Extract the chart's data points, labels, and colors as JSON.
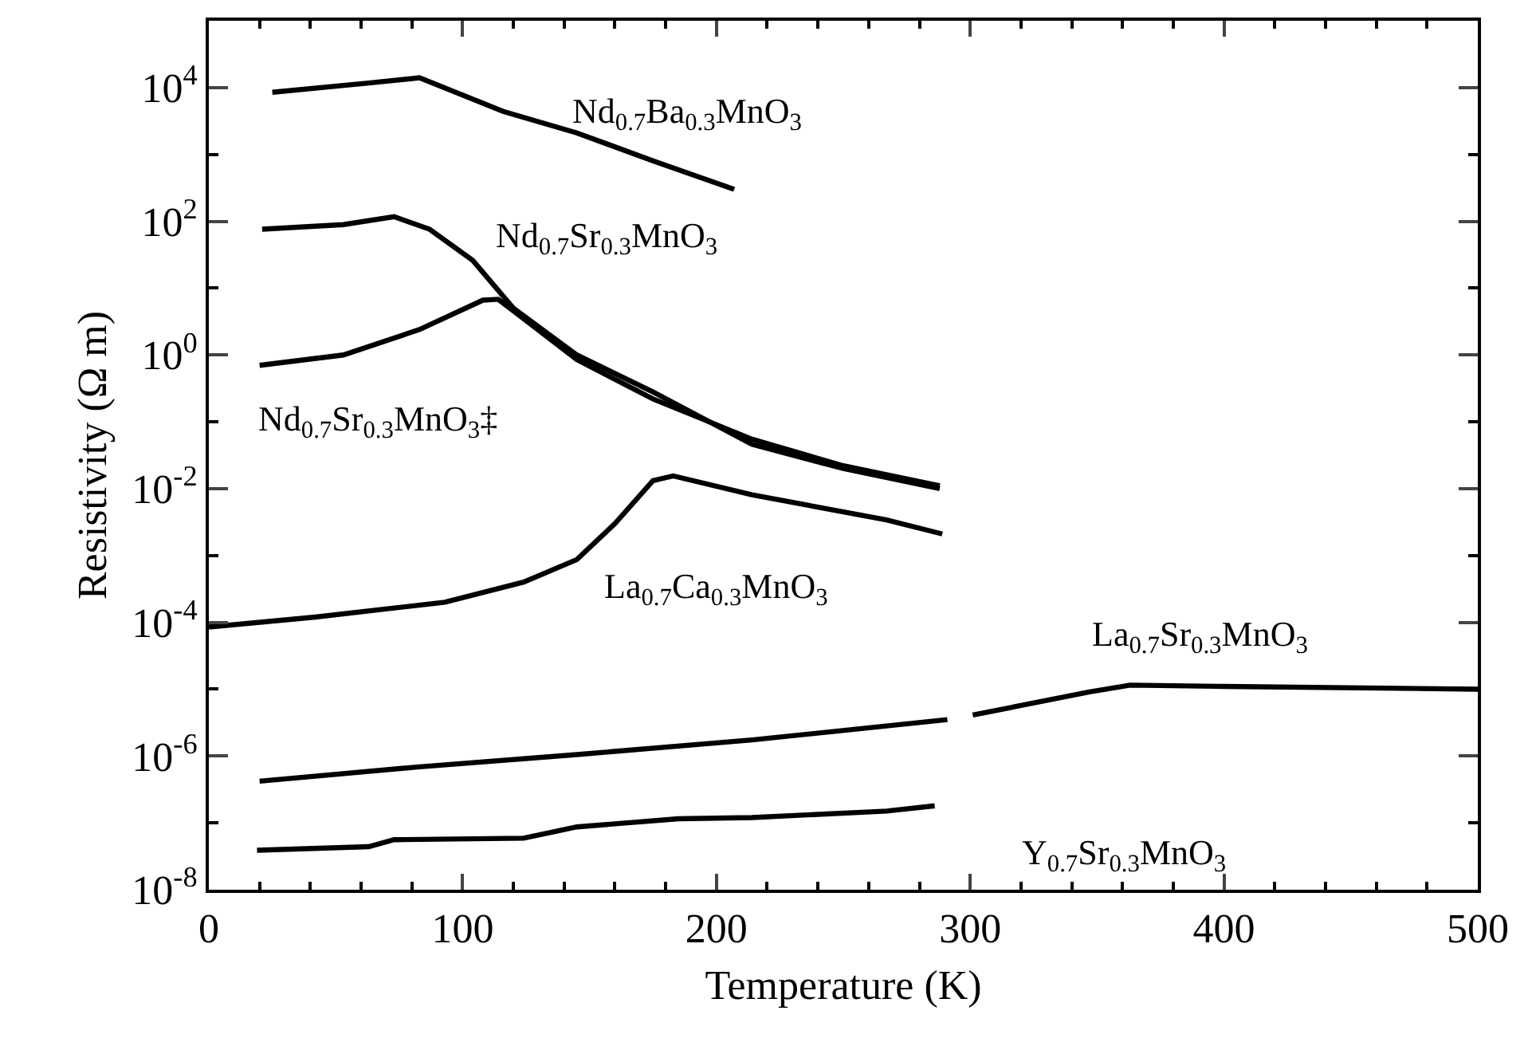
{
  "chart_data": {
    "type": "line",
    "xlabel": "Temperature (K)",
    "ylabel": "Resistivity (Ω m)",
    "xlim": [
      0,
      500
    ],
    "xticks": [
      0,
      100,
      200,
      300,
      400,
      500
    ],
    "ylim": [
      1e-08,
      100000.0
    ],
    "yticks": [
      {
        "value": 1e-08,
        "label": "10$^{-8}$"
      },
      {
        "value": 1e-06,
        "label": "10$^{-6}$"
      },
      {
        "value": 0.0001,
        "label": "10$^{-4}$"
      },
      {
        "value": 0.01,
        "label": "10$^{-2}$"
      },
      {
        "value": 1,
        "label": "10$^{0}$"
      },
      {
        "value": 100,
        "label": "10$^{2}$"
      },
      {
        "value": 10000,
        "label": "10$^{4}$"
      }
    ],
    "log": "y",
    "grid": false,
    "legend": false,
    "marker": "none",
    "line_style": "solid",
    "series": [
      {
        "name": "Nd$_{0.7}$Ba$_{0.3}$MnO$_{3}$",
        "color": "#000000",
        "x": [
          25,
          63,
          83,
          116,
          145,
          175,
          207
        ],
        "values": [
          8500,
          11700,
          14000,
          4400,
          2100,
          800,
          300
        ]
      },
      {
        "name": "Nd$_{0.7}$Sr$_{0.3}$MnO$_{3}$",
        "color": "#000000",
        "x": [
          21,
          53,
          73,
          87,
          104,
          120,
          145,
          175,
          214,
          250,
          288
        ],
        "values": [
          76,
          89,
          117,
          76,
          26,
          5,
          1,
          0.28,
          0.046,
          0.02,
          0.01
        ]
      },
      {
        "name": "Nd$_{0.7}$Sr$_{0.3}$MnO$_{3}$‡",
        "color": "#000000",
        "x": [
          20,
          53,
          83,
          108,
          114,
          124,
          145,
          175,
          214,
          250,
          288
        ],
        "values": [
          0.7,
          1,
          2.4,
          6.6,
          6.8,
          3.5,
          0.85,
          0.22,
          0.055,
          0.022,
          0.011
        ]
      },
      {
        "name": "La$_{0.7}$Ca$_{0.3}$MnO$_{3}$",
        "color": "#000000",
        "x": [
          0,
          42,
          93,
          124,
          145,
          160,
          175,
          183,
          214,
          267,
          289
        ],
        "values": [
          8.5e-05,
          0.00012,
          0.0002,
          0.0004,
          0.00087,
          0.003,
          0.0132,
          0.0155,
          0.0081,
          0.0034,
          0.0021
        ]
      },
      {
        "name": "La$_{0.7}$Sr$_{0.3}$MnO$_{3}$",
        "color": "#000000",
        "x": [
          20,
          83,
          145,
          214,
          291,
          296,
          301,
          347,
          363,
          400,
          500
        ],
        "values": [
          4.2e-07,
          6.9e-07,
          1.05e-06,
          1.74e-06,
          3.5e-06,
          null,
          4.1e-06,
          9.1e-06,
          1.15e-05,
          1.1e-05,
          1e-05
        ]
      },
      {
        "name": "Y$_{0.7}$Sr$_{0.3}$MnO$_{3}$",
        "color": "#000000",
        "x": [
          19,
          63,
          73,
          124,
          134,
          145,
          185,
          214,
          267,
          286
        ],
        "values": [
          3.9e-08,
          4.4e-08,
          5.6e-08,
          5.9e-08,
          7.1e-08,
          8.7e-08,
          1.15e-07,
          1.2e-07,
          1.5e-07,
          1.8e-07
        ]
      }
    ]
  }
}
